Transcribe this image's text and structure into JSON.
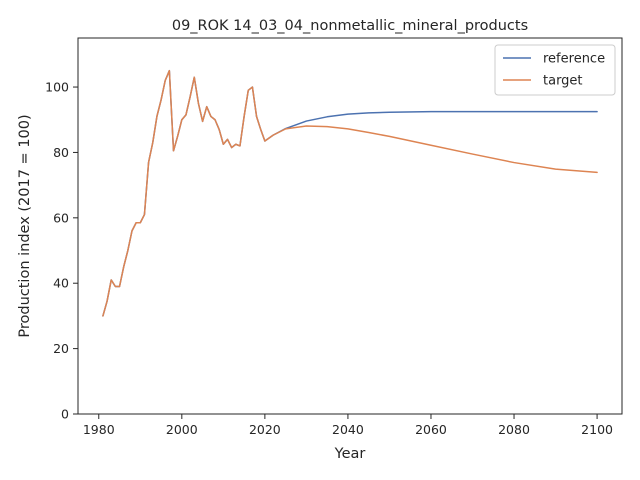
{
  "chart_data": {
    "type": "line",
    "title": "09_ROK 14_03_04_nonmetallic_mineral_products",
    "xlabel": "Year",
    "ylabel": "Production index (2017 = 100)",
    "xlim": [
      1975,
      2106
    ],
    "ylim": [
      0,
      115
    ],
    "xticks": [
      1980,
      2000,
      2020,
      2040,
      2060,
      2080,
      2100
    ],
    "yticks": [
      0,
      20,
      40,
      60,
      80,
      100
    ],
    "grid": false,
    "legend_position": "top-right",
    "series": [
      {
        "name": "reference",
        "color": "#4c72b0",
        "x": [
          1981,
          1982,
          1983,
          1984,
          1985,
          1986,
          1987,
          1988,
          1989,
          1990,
          1991,
          1992,
          1993,
          1994,
          1995,
          1996,
          1997,
          1998,
          1999,
          2000,
          2001,
          2002,
          2003,
          2004,
          2005,
          2006,
          2007,
          2008,
          2009,
          2010,
          2011,
          2012,
          2013,
          2014,
          2015,
          2016,
          2017,
          2018,
          2019,
          2020,
          2022,
          2025,
          2030,
          2035,
          2040,
          2045,
          2050,
          2060,
          2070,
          2080,
          2090,
          2100
        ],
        "y": [
          30,
          34.5,
          41,
          39,
          39,
          45,
          50,
          56,
          58.5,
          58.5,
          61,
          77,
          83,
          91,
          96,
          102,
          105,
          80.5,
          85,
          90,
          91.5,
          97,
          103,
          95,
          89.5,
          94,
          91,
          90,
          87,
          82.5,
          84,
          81.5,
          82.5,
          82,
          91,
          99,
          100,
          91,
          87,
          83.5,
          85.3,
          87.3,
          89.6,
          90.9,
          91.7,
          92.1,
          92.3,
          92.5,
          92.5,
          92.5,
          92.5,
          92.5
        ]
      },
      {
        "name": "target",
        "color": "#dd8452",
        "x": [
          1981,
          1982,
          1983,
          1984,
          1985,
          1986,
          1987,
          1988,
          1989,
          1990,
          1991,
          1992,
          1993,
          1994,
          1995,
          1996,
          1997,
          1998,
          1999,
          2000,
          2001,
          2002,
          2003,
          2004,
          2005,
          2006,
          2007,
          2008,
          2009,
          2010,
          2011,
          2012,
          2013,
          2014,
          2015,
          2016,
          2017,
          2018,
          2019,
          2020,
          2022,
          2025,
          2030,
          2035,
          2040,
          2045,
          2050,
          2060,
          2070,
          2080,
          2090,
          2100
        ],
        "y": [
          30,
          34.5,
          41,
          39,
          39,
          45,
          50,
          56,
          58.5,
          58.5,
          61,
          77,
          83,
          91,
          96,
          102,
          105,
          80.5,
          85,
          90,
          91.5,
          97,
          103,
          95,
          89.5,
          94,
          91,
          90,
          87,
          82.5,
          84,
          81.5,
          82.5,
          82,
          91,
          99,
          100,
          91,
          87,
          83.5,
          85.3,
          87.2,
          88.1,
          87.9,
          87.2,
          86.1,
          84.9,
          82.2,
          79.5,
          76.9,
          74.9,
          73.9
        ]
      }
    ]
  }
}
